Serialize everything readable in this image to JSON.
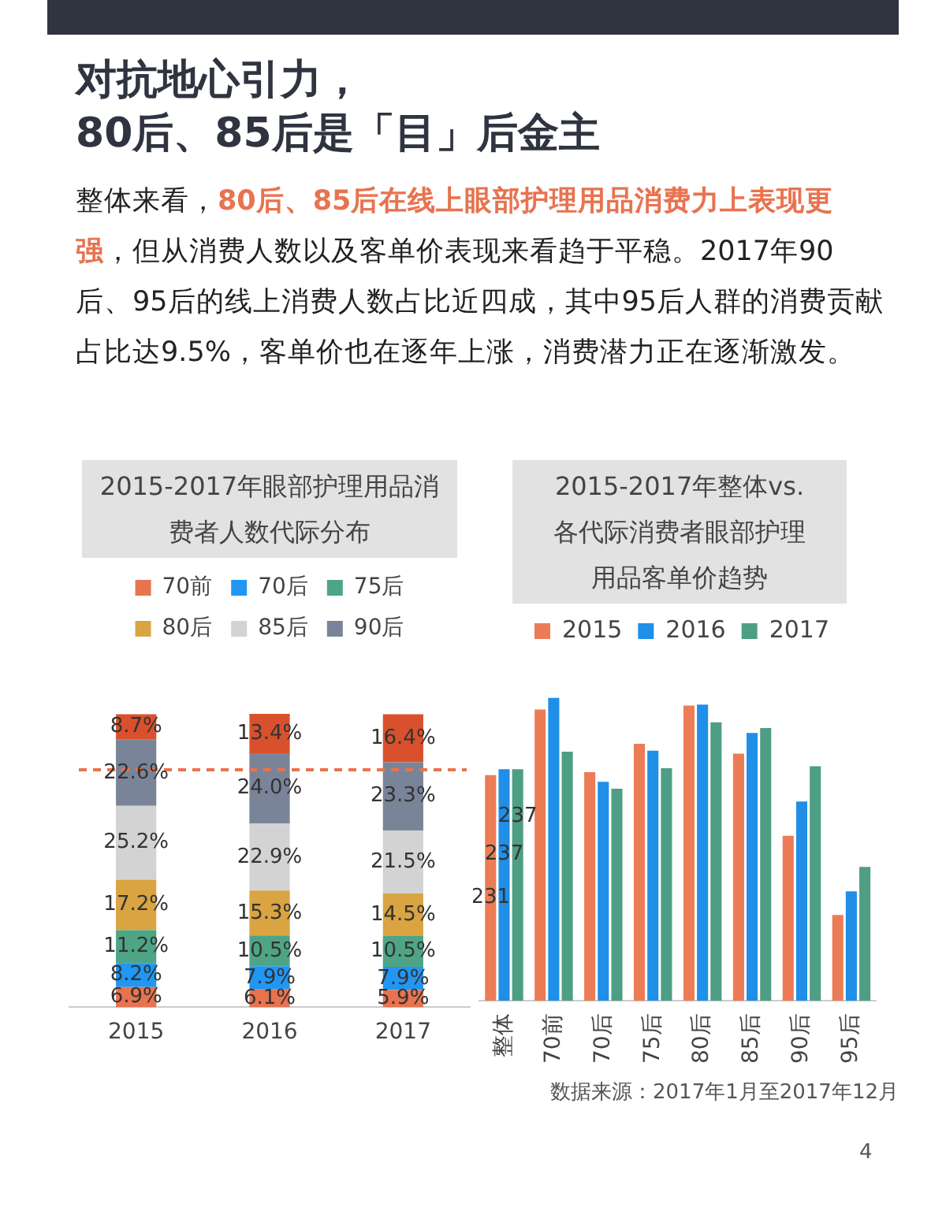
{
  "chart_data": [
    {
      "type": "bar",
      "stacked": true,
      "title": "2015-2017年眼部护理用品消费者人数代际分布",
      "categories": [
        "2015",
        "2016",
        "2017"
      ],
      "legend": "top",
      "grid": false,
      "tick_labels": "x",
      "ref_lines": [
        {
          "axis": "y",
          "value": 81,
          "color": "#e8734f",
          "line_style": "dashed"
        }
      ],
      "annotations": [
        "对抗地心引力，\n80后、85后是「目」后金主",
        "整体来看，",
        "80后、85后在线上眼部护理用品消费力上表现更强",
        "，但从消费人数以及客单价表现来看趋于平稳。2017年90后、95后的线上消费人数占比近四成，其中95后人群的消费贡献占比达9.5%，客单价也在逐年上涨，消费潜力正在逐渐激发。"
      ],
      "series": [
        {
          "name": "70前",
          "color": "#e8734f",
          "values": [
            6.9,
            6.1,
            5.9
          ],
          "value_labels": [
            "6.9%",
            "6.1%",
            "5.9%"
          ]
        },
        {
          "name": "70后",
          "color": "#2196f3",
          "values": [
            8.2,
            7.9,
            7.9
          ],
          "value_labels": [
            "8.2%",
            "7.9%",
            "7.9%"
          ]
        },
        {
          "name": "75后",
          "color": "#4ea585",
          "values": [
            11.2,
            10.5,
            10.5
          ],
          "value_labels": [
            "11.2%",
            "10.5%",
            "10.5%"
          ]
        },
        {
          "name": "80后",
          "color": "#d9a441",
          "values": [
            17.2,
            15.3,
            14.5
          ],
          "value_labels": [
            "17.2%",
            "15.3%",
            "14.5%"
          ]
        },
        {
          "name": "85后",
          "color": "#d3d3d3",
          "values": [
            25.2,
            22.9,
            21.5
          ],
          "value_labels": [
            "25.2%",
            "22.9%",
            "21.5%"
          ]
        },
        {
          "name": "90后",
          "color": "#7a8499",
          "values": [
            22.6,
            24.0,
            23.3
          ],
          "value_labels": [
            "22.6%",
            "24.0%",
            "23.3%"
          ]
        },
        {
          "color": "#d9512c",
          "values": [
            8.7,
            13.4,
            16.4
          ],
          "value_labels": [
            "8.7%",
            "13.4%",
            "16.4%"
          ]
        }
      ]
    },
    {
      "type": "bar",
      "title": "2015-2017年整体vs.各代际消费者眼部护理用品客单价趋势",
      "categories": [
        "整体",
        "70前",
        "70后",
        "75后",
        "80后",
        "85后",
        "90后",
        "95后"
      ],
      "legend": "top",
      "grid": false,
      "tick_labels": "x",
      "annotations": [
        "数据来源：2017年1月至2017年12月",
        "4"
      ],
      "series": [
        {
          "name": "2015",
          "color": "#ec7c55",
          "values": [
            231,
            298,
            234,
            263,
            302,
            253,
            169,
            88
          ],
          "value_labels": [
            "231",
            null,
            null,
            null,
            null,
            null,
            null,
            null
          ]
        },
        {
          "name": "2016",
          "color": "#1f8fe8",
          "values": [
            237,
            310,
            224,
            256,
            303,
            274,
            204,
            112
          ],
          "value_labels": [
            "237",
            null,
            null,
            null,
            null,
            null,
            null,
            null
          ]
        },
        {
          "name": "2017",
          "color": "#4e9e85",
          "values": [
            237,
            255,
            217,
            238,
            285,
            279,
            240,
            137
          ],
          "value_labels": [
            "237",
            null,
            null,
            null,
            null,
            null,
            null,
            null
          ]
        }
      ]
    }
  ]
}
